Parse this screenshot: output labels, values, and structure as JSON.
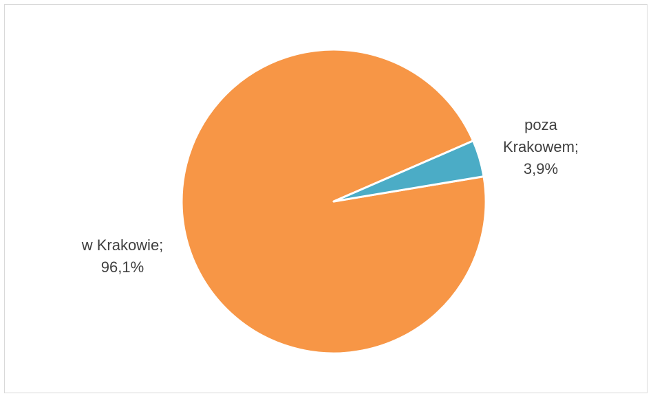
{
  "chart_data": {
    "type": "pie",
    "slices": [
      {
        "label": "w Krakowie;",
        "value_label": "96,1%",
        "value": 96.1,
        "color": "#f79646"
      },
      {
        "label": "poza Krakowem;",
        "value_label": "3,9%",
        "value": 3.9,
        "color": "#4bacc6"
      }
    ],
    "legend": "none",
    "label_lines": {
      "poza": "poza",
      "krakowem": "Krakowem;",
      "krakowie": "w Krakowie;"
    }
  }
}
